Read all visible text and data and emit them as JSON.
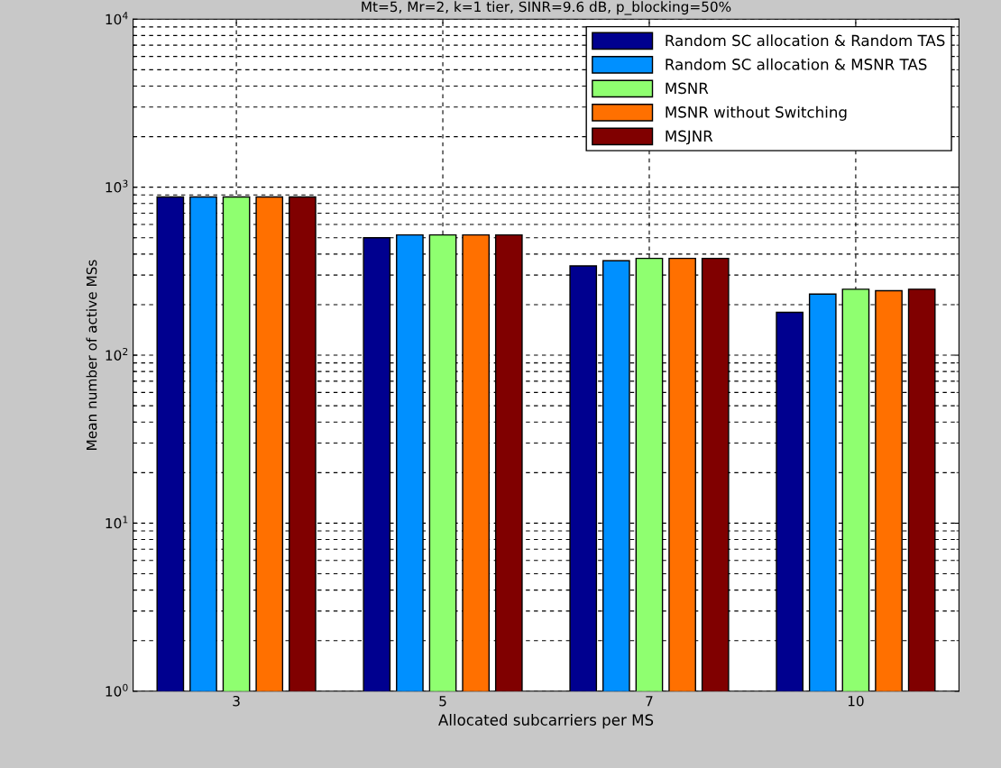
{
  "chart_data": {
    "type": "bar",
    "title": "Mt=5, Mr=2, k=1 tier, SINR=9.6 dB, p_blocking=50%",
    "xlabel": "Allocated subcarriers per MS",
    "ylabel": "Mean number of active MSs",
    "categories": [
      "3",
      "5",
      "7",
      "10"
    ],
    "series": [
      {
        "name": "Random SC allocation & Random TAS",
        "color": "#00008f",
        "values": [
          875,
          500,
          340,
          180
        ]
      },
      {
        "name": "Random SC allocation & MSNR TAS",
        "color": "#0090ff",
        "values": [
          875,
          520,
          365,
          231
        ]
      },
      {
        "name": "MSNR",
        "color": "#8fff70",
        "values": [
          875,
          520,
          377,
          247
        ]
      },
      {
        "name": "MSNR without Switching",
        "color": "#ff7000",
        "values": [
          875,
          520,
          377,
          242
        ]
      },
      {
        "name": "MSJNR",
        "color": "#800000",
        "values": [
          875,
          520,
          377,
          247
        ]
      }
    ],
    "log": "y",
    "ylim": [
      1,
      10000
    ],
    "yticks": [
      {
        "value": 1,
        "label": "10$^{0}$"
      },
      {
        "value": 10,
        "label": "10$^{1}$"
      },
      {
        "value": 100,
        "label": "10$^{2}$"
      },
      {
        "value": 1000,
        "label": "10$^{3}$"
      },
      {
        "value": 10000,
        "label": "10$^{4}$"
      }
    ],
    "grid": true,
    "legend": "top right"
  }
}
